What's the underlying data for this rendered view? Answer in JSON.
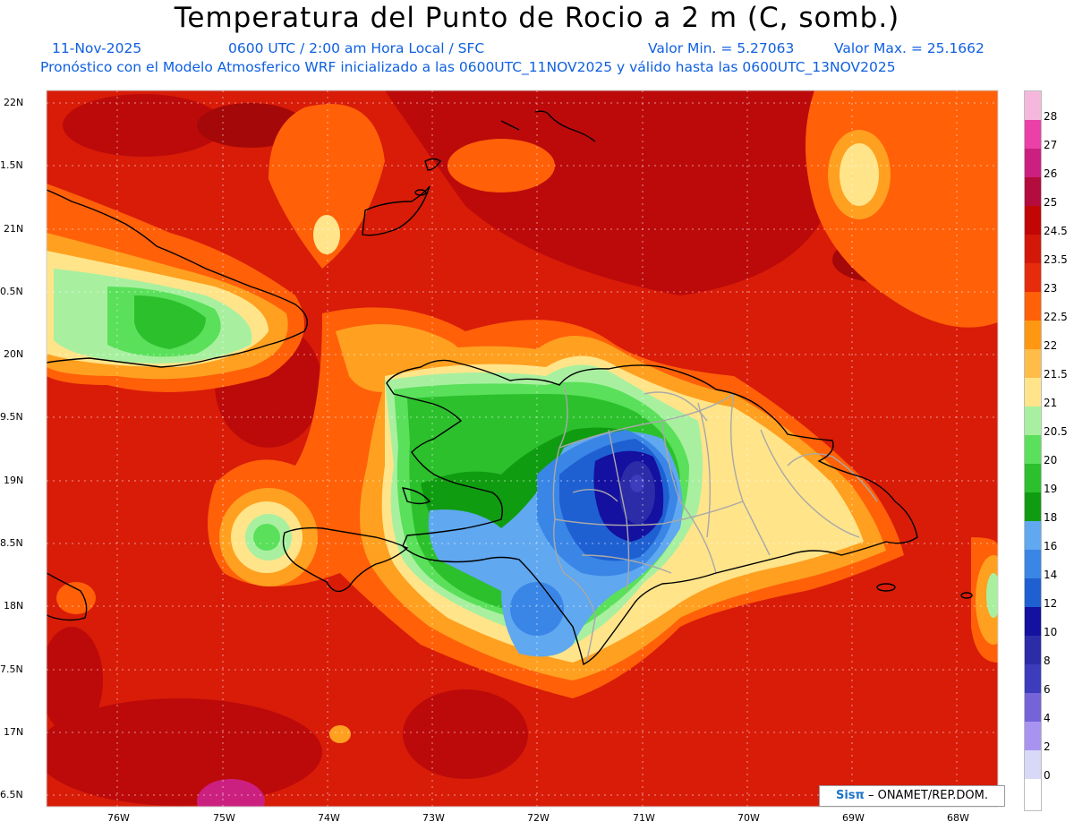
{
  "header": {
    "title": "Temperatura del Punto de Rocio a 2 m (C, somb.)",
    "date": "11-Nov-2025",
    "time_info": "0600 UTC / 2:00 am Hora Local / SFC",
    "value_min": "Valor Min. = 5.27063",
    "value_max": "Valor Max. = 25.1662",
    "model_info": "Pronóstico con el Modelo Atmosferico WRF inicializado a las 0600UTC_11NOV2025 y válido hasta las  0600UTC_13NOV2025"
  },
  "map": {
    "lat_labels": [
      "22N",
      "1.5N",
      "21N",
      "0.5N",
      "20N",
      "9.5N",
      "19N",
      "8.5N",
      "18N",
      "7.5N",
      "17N",
      "6.5N"
    ],
    "lon_labels": [
      "76W",
      "75W",
      "74W",
      "73W",
      "72W",
      "71W",
      "70W",
      "69W",
      "68W"
    ]
  },
  "legend": {
    "labels": [
      "28",
      "27",
      "26",
      "25",
      "24.5",
      "23.5",
      "23",
      "22.5",
      "22",
      "21.5",
      "21",
      "20.5",
      "20",
      "19",
      "18",
      "16",
      "14",
      "12",
      "10",
      "8",
      "6",
      "4",
      "2",
      "0"
    ],
    "colors": [
      "#f5b8dc",
      "#ea40a8",
      "#cc2080",
      "#b40c3c",
      "#c20606",
      "#d41808",
      "#e62c0a",
      "#ff6008",
      "#ff9810",
      "#ffbc48",
      "#ffe48a",
      "#a8f0a0",
      "#5ae05a",
      "#2cc02c",
      "#109c10",
      "#60a8f0",
      "#3a86e6",
      "#1e60d2",
      "#1410a0",
      "#2c2ca8",
      "#3c3cbc",
      "#7464d8",
      "#a894f0",
      "#d8d8f8",
      "#ffffff"
    ]
  },
  "credit": {
    "logo": "Sisπ",
    "org": "– ONAMET/REP.DOM."
  }
}
